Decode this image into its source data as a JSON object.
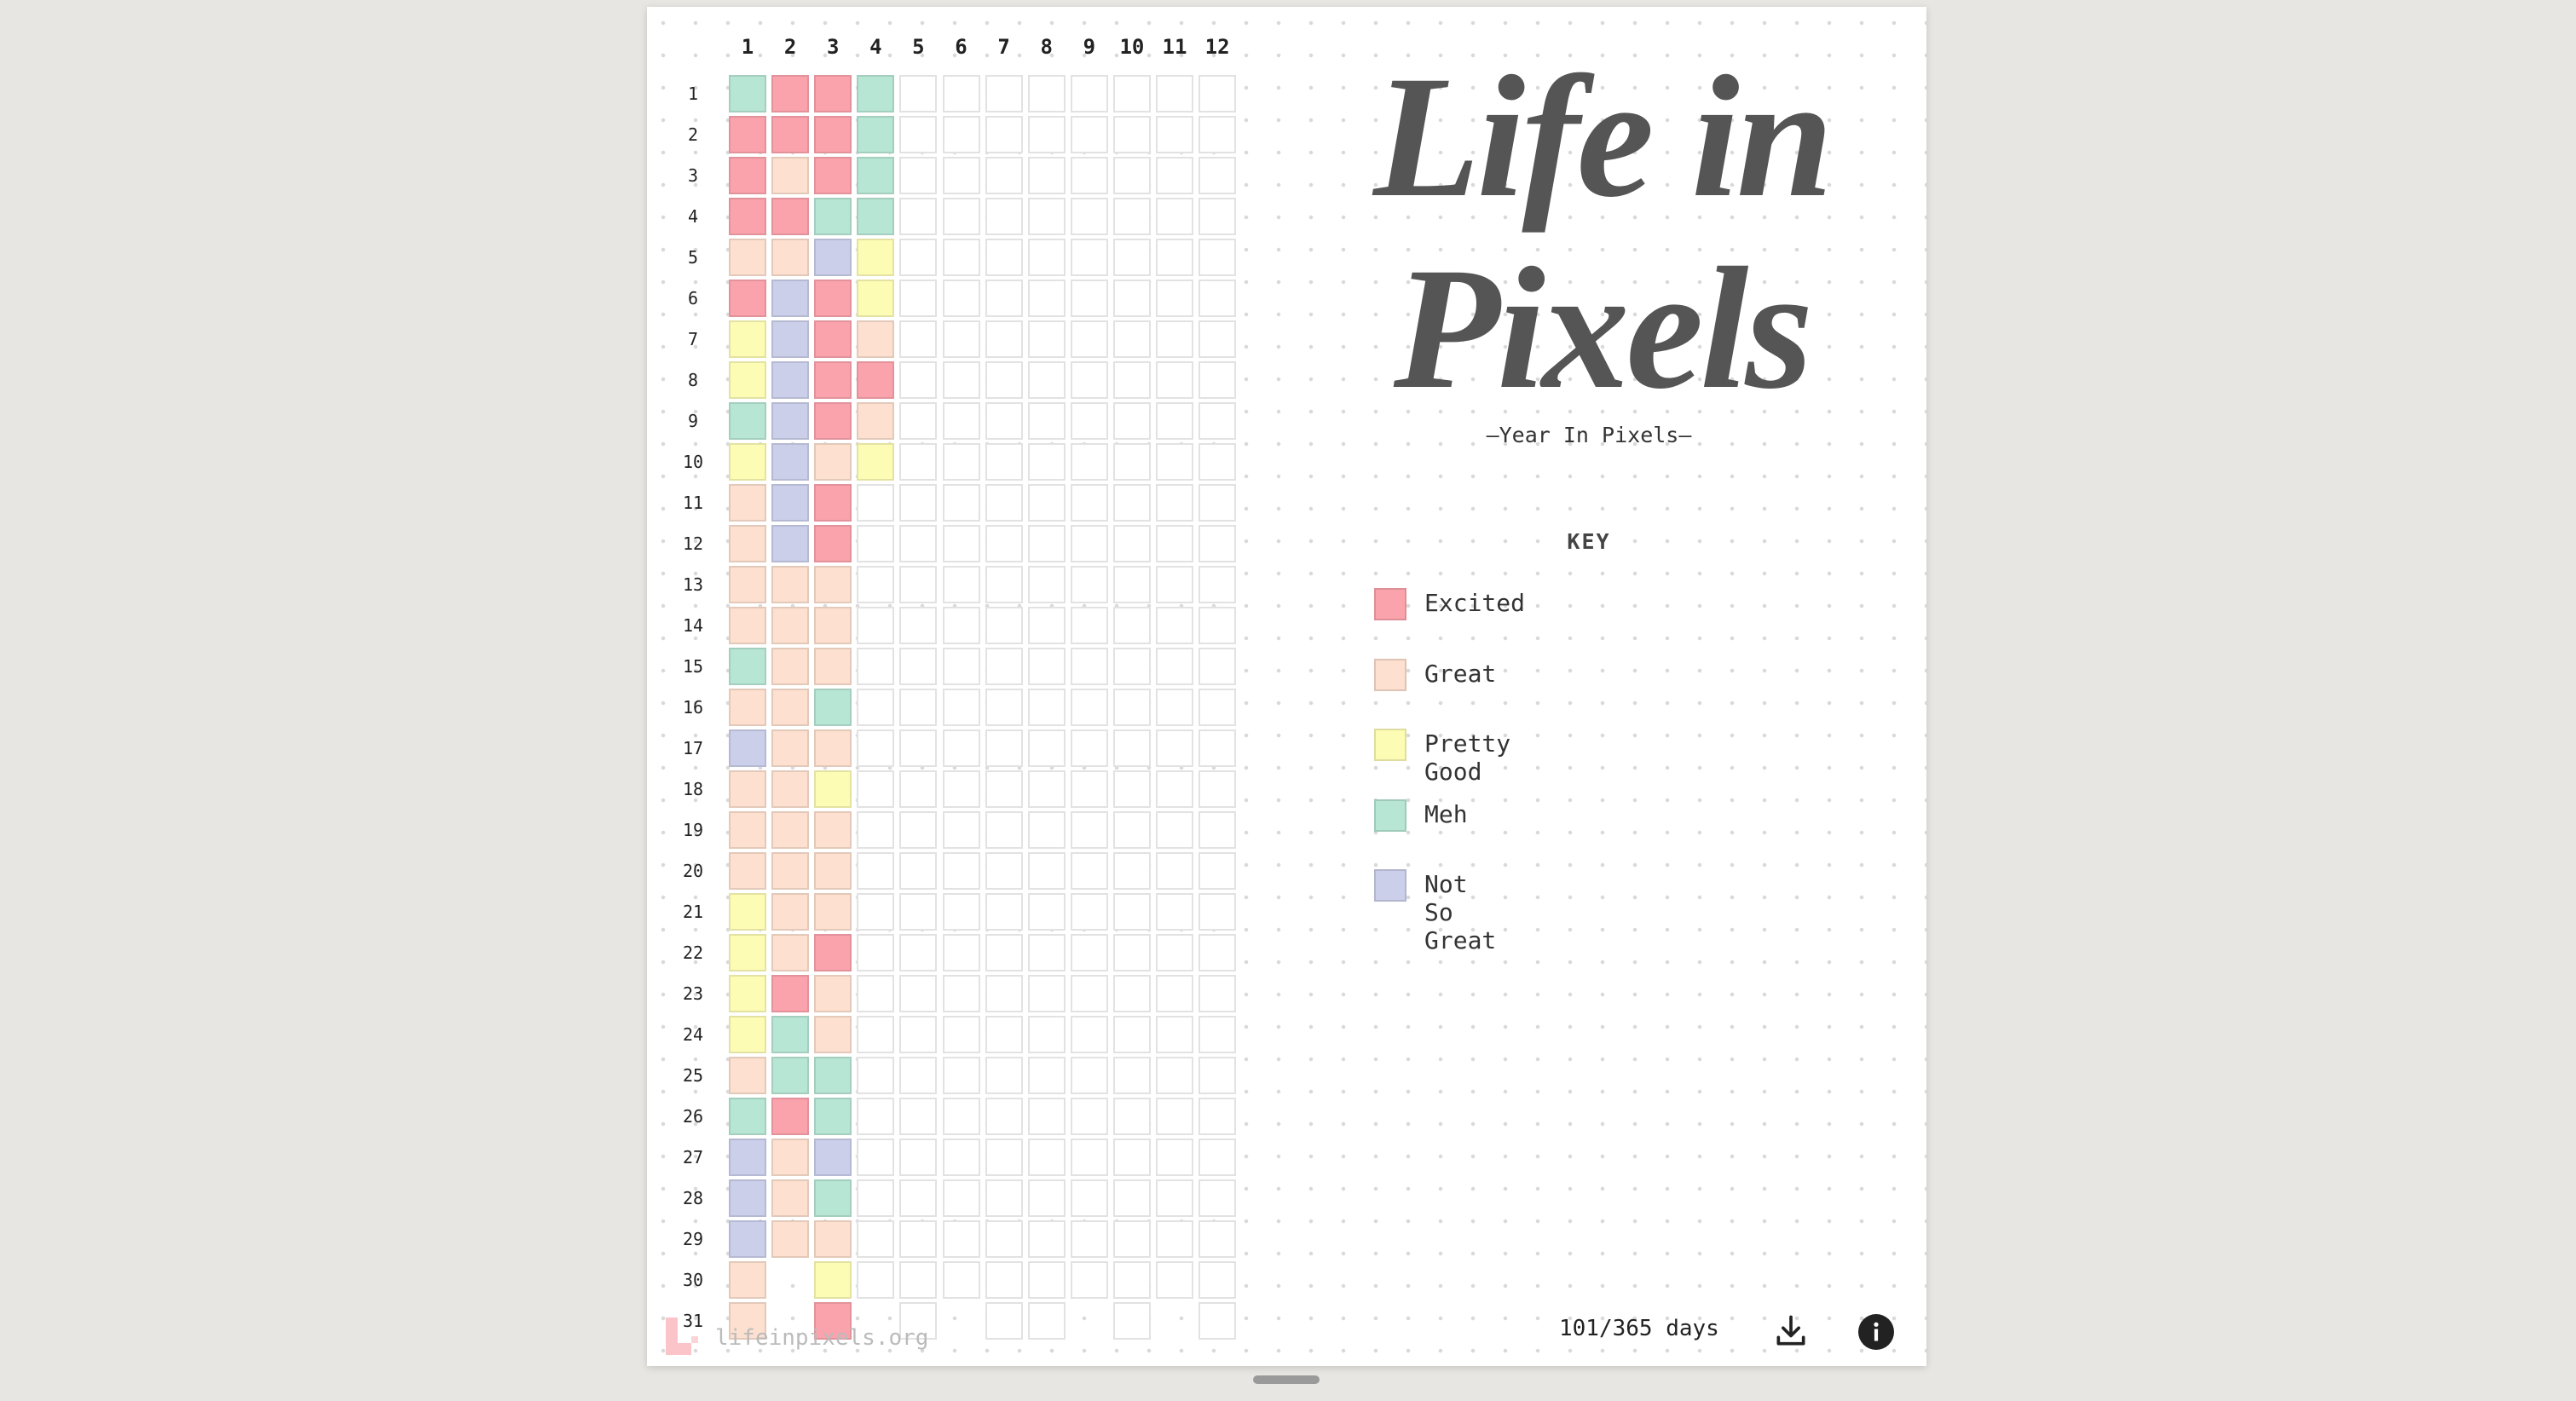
{
  "grid": {
    "months": [
      "1",
      "2",
      "3",
      "4",
      "5",
      "6",
      "7",
      "8",
      "9",
      "10",
      "11",
      "12"
    ],
    "days": [
      1,
      2,
      3,
      4,
      5,
      6,
      7,
      8,
      9,
      10,
      11,
      12,
      13,
      14,
      15,
      16,
      17,
      18,
      19,
      20,
      21,
      22,
      23,
      24,
      25,
      26,
      27,
      28,
      29,
      30,
      31
    ],
    "cells": [
      [
        3,
        0,
        0,
        0,
        1,
        0,
        2,
        2,
        3,
        2,
        1,
        1,
        1,
        1,
        3,
        1,
        4,
        1,
        1,
        1,
        2,
        2,
        2,
        2,
        1,
        3,
        4,
        4,
        4,
        1,
        1
      ],
      [
        0,
        0,
        1,
        0,
        1,
        4,
        4,
        4,
        4,
        4,
        4,
        4,
        1,
        1,
        1,
        1,
        1,
        1,
        1,
        1,
        1,
        1,
        0,
        3,
        3,
        0,
        1,
        1,
        1
      ],
      [
        0,
        0,
        0,
        3,
        4,
        0,
        0,
        0,
        0,
        1,
        0,
        0,
        1,
        1,
        1,
        3,
        1,
        2,
        1,
        1,
        1,
        0,
        1,
        1,
        3,
        3,
        4,
        3,
        1,
        2,
        0
      ],
      [
        3,
        3,
        3,
        3,
        2,
        2,
        1,
        0,
        1,
        2,
        null,
        null,
        null,
        null,
        null,
        null,
        null,
        null,
        null,
        null,
        null,
        null,
        null,
        null,
        null,
        null,
        null,
        null,
        null,
        null
      ],
      [
        null,
        null,
        null,
        null,
        null,
        null,
        null,
        null,
        null,
        null,
        null,
        null,
        null,
        null,
        null,
        null,
        null,
        null,
        null,
        null,
        null,
        null,
        null,
        null,
        null,
        null,
        null,
        null,
        null,
        null,
        null
      ],
      [
        null,
        null,
        null,
        null,
        null,
        null,
        null,
        null,
        null,
        null,
        null,
        null,
        null,
        null,
        null,
        null,
        null,
        null,
        null,
        null,
        null,
        null,
        null,
        null,
        null,
        null,
        null,
        null,
        null,
        null
      ],
      [
        null,
        null,
        null,
        null,
        null,
        null,
        null,
        null,
        null,
        null,
        null,
        null,
        null,
        null,
        null,
        null,
        null,
        null,
        null,
        null,
        null,
        null,
        null,
        null,
        null,
        null,
        null,
        null,
        null,
        null,
        null
      ],
      [
        null,
        null,
        null,
        null,
        null,
        null,
        null,
        null,
        null,
        null,
        null,
        null,
        null,
        null,
        null,
        null,
        null,
        null,
        null,
        null,
        null,
        null,
        null,
        null,
        null,
        null,
        null,
        null,
        null,
        null,
        null
      ],
      [
        null,
        null,
        null,
        null,
        null,
        null,
        null,
        null,
        null,
        null,
        null,
        null,
        null,
        null,
        null,
        null,
        null,
        null,
        null,
        null,
        null,
        null,
        null,
        null,
        null,
        null,
        null,
        null,
        null,
        null
      ],
      [
        null,
        null,
        null,
        null,
        null,
        null,
        null,
        null,
        null,
        null,
        null,
        null,
        null,
        null,
        null,
        null,
        null,
        null,
        null,
        null,
        null,
        null,
        null,
        null,
        null,
        null,
        null,
        null,
        null,
        null,
        null
      ],
      [
        null,
        null,
        null,
        null,
        null,
        null,
        null,
        null,
        null,
        null,
        null,
        null,
        null,
        null,
        null,
        null,
        null,
        null,
        null,
        null,
        null,
        null,
        null,
        null,
        null,
        null,
        null,
        null,
        null,
        null
      ],
      [
        null,
        null,
        null,
        null,
        null,
        null,
        null,
        null,
        null,
        null,
        null,
        null,
        null,
        null,
        null,
        null,
        null,
        null,
        null,
        null,
        null,
        null,
        null,
        null,
        null,
        null,
        null,
        null,
        null,
        null,
        null
      ]
    ]
  },
  "header": {
    "title": "Life in Pixels",
    "subtitle": "–Year In Pixels–"
  },
  "key": {
    "title": "KEY",
    "items": [
      {
        "label": "Excited",
        "color": "#fba3ac"
      },
      {
        "label": "Great",
        "color": "#fde0cf"
      },
      {
        "label": "Pretty Good",
        "color": "#fdfcb5"
      },
      {
        "label": "Meh",
        "color": "#b7e6d4"
      },
      {
        "label": "Not So Great",
        "color": "#cbcfea"
      }
    ]
  },
  "footer": {
    "count": "101/365 days",
    "site": "lifeinpixels.org"
  }
}
